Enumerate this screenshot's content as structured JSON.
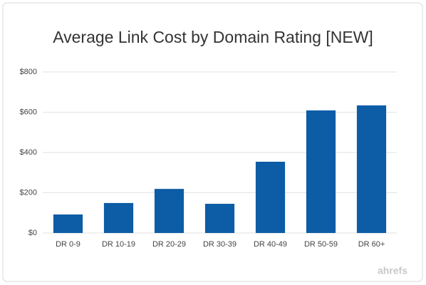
{
  "chart_data": {
    "type": "bar",
    "title": "Average Link Cost by Domain Rating [NEW]",
    "categories": [
      "DR 0-9",
      "DR 10-19",
      "DR 20-29",
      "DR 30-39",
      "DR 40-49",
      "DR 50-59",
      "DR 60+"
    ],
    "values": [
      92,
      149,
      219,
      145,
      354,
      609,
      634
    ],
    "color": "#0d5ca6",
    "ylim": [
      0,
      800
    ],
    "yticks": [
      {
        "value": 0,
        "label": "$0"
      },
      {
        "value": 200,
        "label": "$200"
      },
      {
        "value": 400,
        "label": "$400"
      },
      {
        "value": 600,
        "label": "$600"
      },
      {
        "value": 800,
        "label": "$800"
      }
    ],
    "grid": true,
    "watermark": "ahrefs"
  }
}
